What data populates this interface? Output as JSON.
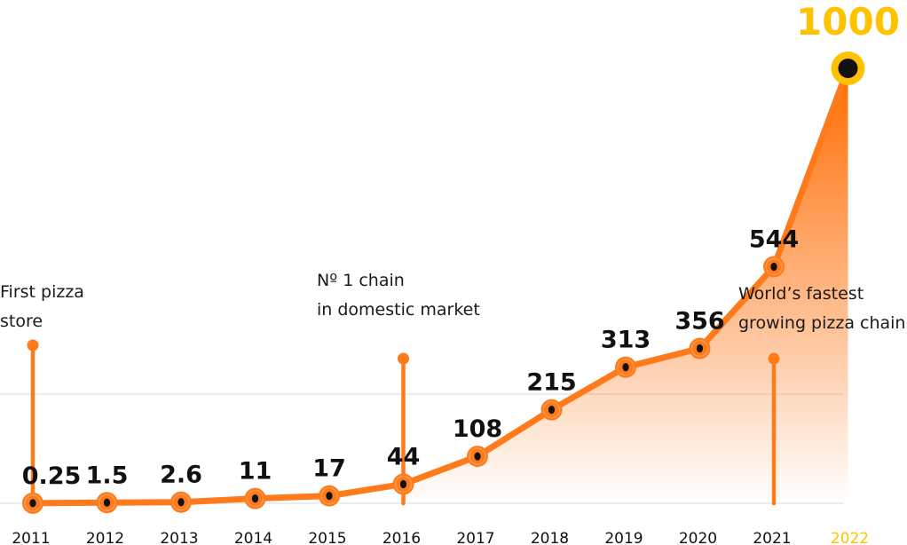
{
  "colors": {
    "line": "#ff7a1a",
    "marker_fill": "#ff7a1a",
    "marker_center": "#111111",
    "highlight": "#ffc200",
    "text": "#111111",
    "gridline": "#e6e6e6",
    "area_top": "#ff6a00"
  },
  "annotations": [
    {
      "line1": "First pizza",
      "line2": "store",
      "year": "2011"
    },
    {
      "line1": "Nº 1 chain",
      "line2": "in domestic market",
      "year": "2016"
    },
    {
      "line1": "World’s fastest",
      "line2": "growing pizza chain",
      "year": "2021"
    }
  ],
  "chart_data": {
    "type": "line",
    "categories": [
      "2011",
      "2012",
      "2013",
      "2014",
      "2015",
      "2016",
      "2017",
      "2018",
      "2019",
      "2020",
      "2021",
      "2022"
    ],
    "value_labels": [
      "0.25",
      "1.5",
      "2.6",
      "11",
      "17",
      "44",
      "108",
      "215",
      "313",
      "356",
      "544",
      "1000"
    ],
    "values": [
      0.25,
      1.5,
      2.6,
      11,
      17,
      44,
      108,
      215,
      313,
      356,
      544,
      1000
    ],
    "highlight_index": 11,
    "area_fill_from_index": 5,
    "ylim": [
      0,
      1000
    ],
    "title": "",
    "xlabel": "",
    "ylabel": "",
    "grid": "horizontal",
    "legend": "none"
  }
}
